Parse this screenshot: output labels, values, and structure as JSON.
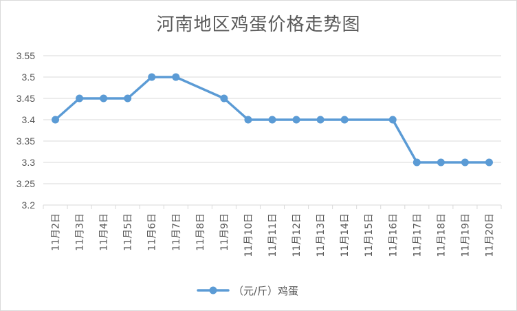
{
  "chart_data": {
    "type": "line",
    "title": "河南地区鸡蛋价格走势图",
    "categories": [
      "11月2日",
      "11月3日",
      "11月4日",
      "11月5日",
      "11月6日",
      "11月7日",
      "11月8日",
      "11月9日",
      "11月10日",
      "11月11日",
      "11月12日",
      "11月13日",
      "11月14日",
      "11月15日",
      "11月16日",
      "11月17日",
      "11月18日",
      "11月19日",
      "11月20日"
    ],
    "series": [
      {
        "name": "（元/斤）鸡蛋",
        "values": [
          3.4,
          3.45,
          3.45,
          3.45,
          3.5,
          3.5,
          null,
          3.45,
          3.4,
          3.4,
          3.4,
          3.4,
          3.4,
          null,
          3.4,
          3.3,
          3.3,
          3.3,
          3.3
        ]
      }
    ],
    "ylim": [
      3.2,
      3.55
    ],
    "yticks": [
      "3.2",
      "3.25",
      "3.3",
      "3.35",
      "3.4",
      "3.45",
      "3.5",
      "3.55"
    ],
    "grid": true,
    "legend": "bottom",
    "colors": {
      "series": "#5b9bd5",
      "grid": "#d9d9d9",
      "text": "#595959"
    }
  }
}
